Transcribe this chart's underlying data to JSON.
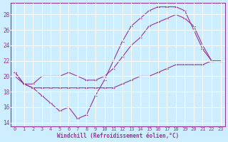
{
  "xlabel": "Windchill (Refroidissement éolien,°C)",
  "background_color": "#cceeff",
  "grid_color": "#aadddd",
  "line_color": "#993399",
  "yticks": [
    14,
    16,
    18,
    20,
    22,
    24,
    26,
    28
  ],
  "xticks": [
    0,
    1,
    2,
    3,
    4,
    5,
    6,
    7,
    8,
    9,
    10,
    11,
    12,
    13,
    14,
    15,
    16,
    17,
    18,
    19,
    20,
    21,
    22,
    23
  ],
  "series": [
    {
      "x": [
        0,
        1,
        2,
        3,
        4,
        5,
        6,
        7,
        8,
        9,
        10,
        11,
        12,
        13,
        14,
        15,
        16,
        17,
        18,
        19,
        20,
        21,
        22,
        23
      ],
      "y": [
        20.5,
        19.0,
        18.5,
        17.5,
        16.5,
        15.5,
        16.0,
        14.5,
        15.0,
        17.5,
        19.5,
        22.0,
        24.5,
        26.5,
        27.5,
        28.5,
        29.0,
        29.0,
        29.0,
        28.5,
        26.0,
        23.5,
        22.0,
        22.0
      ]
    },
    {
      "x": [
        0,
        1,
        2,
        3,
        4,
        5,
        6,
        7,
        8,
        9,
        10,
        11,
        12,
        13,
        14,
        15,
        16,
        17,
        18,
        19,
        20,
        21,
        22,
        23
      ],
      "y": [
        20.5,
        19.0,
        19.0,
        20.0,
        20.0,
        20.0,
        20.5,
        20.0,
        19.5,
        19.5,
        20.0,
        21.0,
        22.5,
        24.0,
        25.0,
        26.5,
        27.0,
        27.5,
        28.0,
        27.5,
        26.5,
        24.0,
        22.0,
        22.0
      ]
    },
    {
      "x": [
        0,
        1,
        2,
        3,
        4,
        5,
        6,
        7,
        8,
        9,
        10,
        11,
        12,
        13,
        14,
        15,
        16,
        17,
        18,
        19,
        20,
        21,
        22,
        23
      ],
      "y": [
        20.0,
        19.0,
        18.5,
        18.5,
        18.5,
        18.5,
        18.5,
        18.5,
        18.5,
        18.5,
        18.5,
        18.5,
        19.0,
        19.5,
        20.0,
        20.0,
        20.5,
        21.0,
        21.5,
        21.5,
        21.5,
        21.5,
        22.0,
        22.0
      ]
    }
  ]
}
